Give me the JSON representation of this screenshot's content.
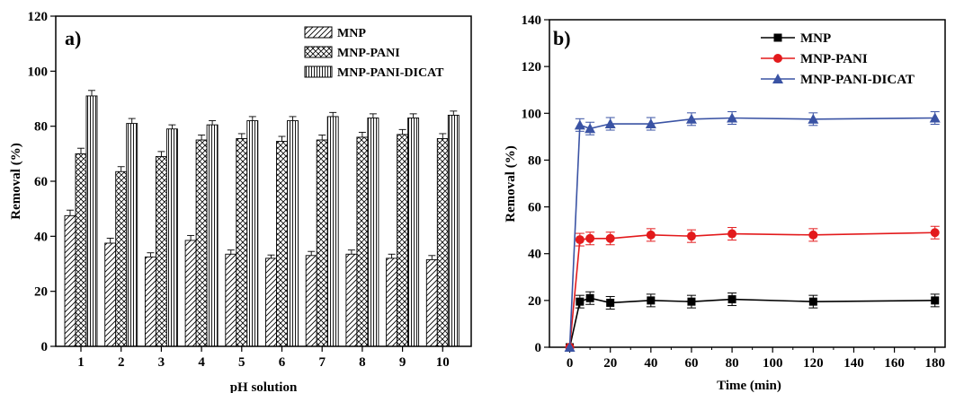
{
  "chart_data": [
    {
      "type": "bar",
      "panel_label": "a)",
      "xlabel": "pH solution",
      "ylabel": "Removal (%)",
      "ylim": [
        0,
        120
      ],
      "yticks": [
        0,
        20,
        40,
        60,
        80,
        100,
        120
      ],
      "categories": [
        "1",
        "2",
        "3",
        "4",
        "5",
        "6",
        "7",
        "8",
        "9",
        "10"
      ],
      "legend_position": "top-right",
      "series": [
        {
          "name": "MNP",
          "pattern": "diagonal-hatch",
          "values": [
            47.5,
            37.5,
            32.5,
            38.5,
            33.5,
            32,
            33,
            33.5,
            32,
            31.5
          ],
          "errors": [
            2,
            1.8,
            1.5,
            1.8,
            1.5,
            1.2,
            1.5,
            1.5,
            1.5,
            1.5
          ]
        },
        {
          "name": "MNP-PANI",
          "pattern": "cross-hatch",
          "values": [
            70,
            63.5,
            69,
            75,
            75.5,
            74.5,
            75,
            76,
            77,
            75.5
          ],
          "errors": [
            2,
            1.8,
            1.8,
            1.8,
            1.8,
            1.8,
            1.8,
            1.8,
            1.8,
            1.8
          ]
        },
        {
          "name": "MNP-PANI-DICAT",
          "pattern": "vertical-lines",
          "values": [
            91,
            81,
            79,
            80.5,
            82,
            82,
            83.5,
            83,
            83,
            84
          ],
          "errors": [
            2,
            1.8,
            1.5,
            1.5,
            1.5,
            1.5,
            1.5,
            1.5,
            1.5,
            1.5
          ]
        }
      ]
    },
    {
      "type": "line",
      "panel_label": "b)",
      "xlabel": "Time (min)",
      "ylabel": "Removal (%)",
      "xlim": [
        -10,
        185
      ],
      "ylim": [
        0,
        140
      ],
      "xticks": [
        0,
        20,
        40,
        60,
        80,
        100,
        120,
        140,
        160,
        180
      ],
      "yticks": [
        0,
        20,
        40,
        60,
        80,
        100,
        120,
        140
      ],
      "legend_position": "top-right",
      "x": [
        0,
        5,
        10,
        20,
        40,
        60,
        80,
        120,
        180
      ],
      "series": [
        {
          "name": "MNP",
          "color": "#000000",
          "marker": "square",
          "values": [
            0,
            19.5,
            21,
            19,
            20,
            19.5,
            20.5,
            19.5,
            20
          ]
        },
        {
          "name": "MNP-PANI",
          "color": "#e31a1c",
          "marker": "circle",
          "values": [
            0,
            46,
            46.5,
            46.5,
            48,
            47.5,
            48.5,
            48,
            49
          ]
        },
        {
          "name": "MNP-PANI-DICAT",
          "color": "#3a53a4",
          "marker": "triangle",
          "values": [
            0,
            95,
            93.5,
            95.5,
            95.5,
            97.5,
            98,
            97.5,
            98
          ]
        }
      ]
    }
  ]
}
